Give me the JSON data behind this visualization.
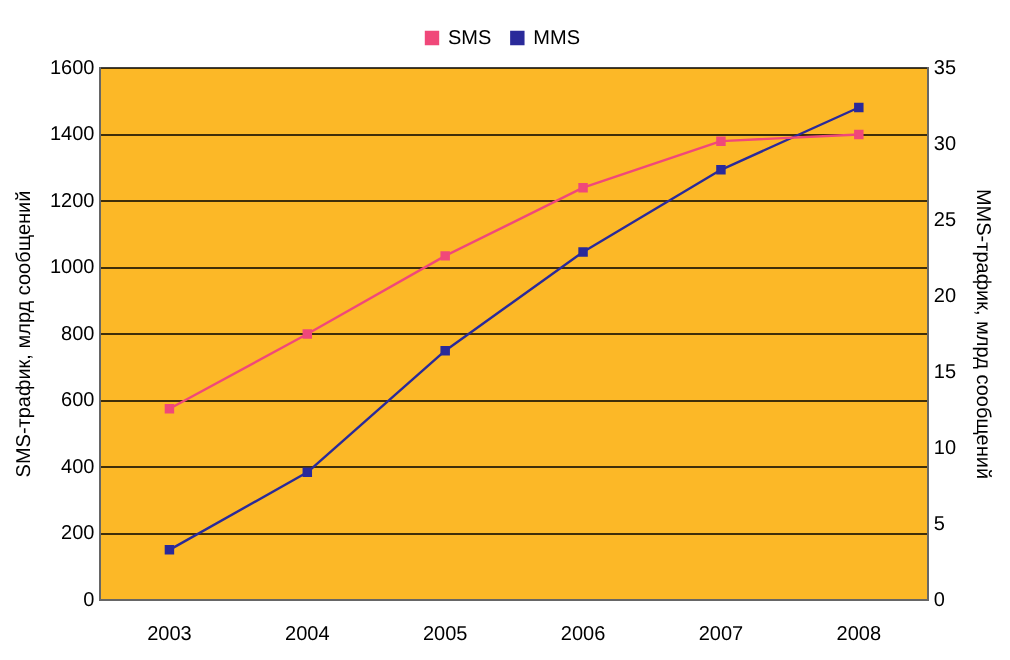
{
  "chart_data": {
    "type": "line",
    "ylabel": "SMS-трафик, млрд сообщений",
    "y2label": "MMS-трафик, млрд сообщений",
    "categories": [
      "2003",
      "2004",
      "2005",
      "2006",
      "2007",
      "2008"
    ],
    "series": [
      {
        "name": "SMS",
        "color": "#f0487a",
        "values": [
          575,
          800,
          1035,
          1240,
          1380,
          1400
        ]
      },
      {
        "name": "MMS",
        "color": "#2a2a9a",
        "axis": "y2",
        "values": [
          3.3,
          8.4,
          16.4,
          22.9,
          28.3,
          32.4
        ]
      }
    ],
    "ylim": [
      0,
      1600
    ],
    "yticks": [
      0,
      200,
      400,
      600,
      800,
      1000,
      1200,
      1400,
      1600
    ],
    "y2lim": [
      0,
      35
    ],
    "y2ticks": [
      0,
      5,
      10,
      15,
      20,
      25,
      30,
      35
    ],
    "grid": "y",
    "legend": "top",
    "marker": "square",
    "line_style": "solid"
  }
}
